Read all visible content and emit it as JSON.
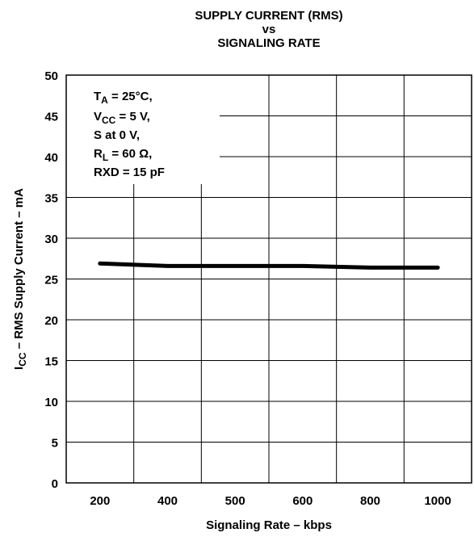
{
  "chart_data": {
    "type": "line",
    "title_lines": [
      "SUPPLY CURRENT (RMS)",
      "vs",
      "SIGNALING RATE"
    ],
    "xlabel": "Signaling Rate  – kbps",
    "ylabel": {
      "prefix": "I",
      "subscript": "CC",
      "suffix": " – RMS Supply Current – mA"
    },
    "x_ticks": [
      "200",
      "400",
      "500",
      "600",
      "800",
      "1000"
    ],
    "y_ticks": [
      "0",
      "5",
      "10",
      "15",
      "20",
      "25",
      "30",
      "35",
      "40",
      "45",
      "50"
    ],
    "ylim": [
      0,
      50
    ],
    "grid": true,
    "conditions": [
      {
        "main": "T",
        "sub": "A",
        "rest": " = 25°C,"
      },
      {
        "main": "V",
        "sub": "CC",
        "rest": " = 5 V,"
      },
      {
        "main": "S at 0 V,",
        "sub": "",
        "rest": ""
      },
      {
        "main": "R",
        "sub": "L",
        "rest": " = 60 Ω,"
      },
      {
        "main": "RXD = 15 pF",
        "sub": "",
        "rest": ""
      }
    ],
    "series": [
      {
        "x": [
          "200",
          "400",
          "500",
          "600",
          "800",
          "1000"
        ],
        "values": [
          26.9,
          26.6,
          26.6,
          26.6,
          26.4,
          26.4
        ]
      }
    ]
  }
}
